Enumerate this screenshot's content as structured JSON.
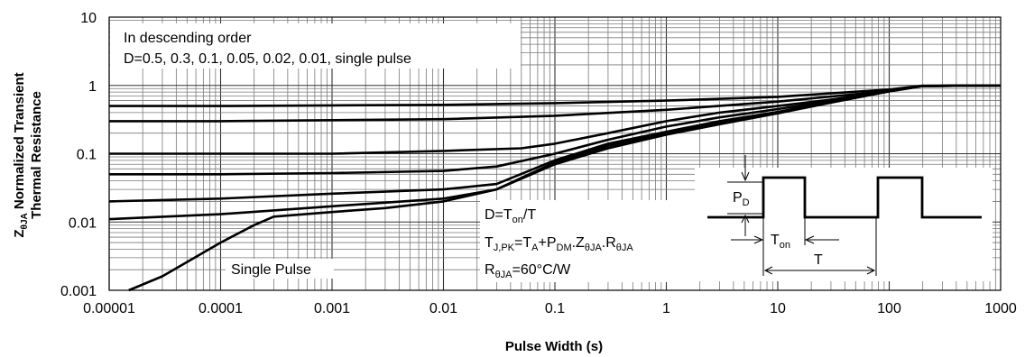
{
  "chart_data": {
    "type": "line",
    "xscale": "log",
    "yscale": "log",
    "xlim": [
      1e-05,
      1000
    ],
    "ylim": [
      0.001,
      10
    ],
    "xlabel": "Pulse Width (s)",
    "ylabel": {
      "line1_prefix": "Z",
      "line1_sub": "θJA",
      "line1_rest": " Normalized Transient",
      "line2": "Thermal Resistance"
    },
    "x_ticks": [
      {
        "v": 1e-05,
        "label": "0.00001"
      },
      {
        "v": 0.0001,
        "label": "0.0001"
      },
      {
        "v": 0.001,
        "label": "0.001"
      },
      {
        "v": 0.01,
        "label": "0.01"
      },
      {
        "v": 0.1,
        "label": "0.1"
      },
      {
        "v": 1,
        "label": "1"
      },
      {
        "v": 10,
        "label": "10"
      },
      {
        "v": 100,
        "label": "100"
      },
      {
        "v": 1000,
        "label": "1000"
      }
    ],
    "y_ticks": [
      {
        "v": 0.001,
        "label": "0.001"
      },
      {
        "v": 0.01,
        "label": "0.01"
      },
      {
        "v": 0.1,
        "label": "0.1"
      },
      {
        "v": 1,
        "label": "1"
      },
      {
        "v": 10,
        "label": "10"
      }
    ],
    "grid": true,
    "series": [
      {
        "x": [
          1e-05,
          0.0001,
          0.001,
          0.01,
          0.1,
          1,
          10,
          100,
          200,
          1000
        ],
        "y": [
          0.5,
          0.5,
          0.51,
          0.52,
          0.55,
          0.6,
          0.68,
          0.87,
          0.99,
          1.0
        ]
      },
      {
        "x": [
          1e-05,
          0.0001,
          0.001,
          0.01,
          0.1,
          1,
          10,
          100,
          200,
          1000
        ],
        "y": [
          0.3,
          0.3,
          0.31,
          0.32,
          0.36,
          0.44,
          0.58,
          0.83,
          0.98,
          1.0
        ]
      },
      {
        "x": [
          1e-05,
          0.0001,
          0.001,
          0.01,
          0.05,
          0.1,
          0.3,
          1,
          3,
          10,
          30,
          100,
          200,
          1000
        ],
        "y": [
          0.1,
          0.1,
          0.1,
          0.11,
          0.12,
          0.14,
          0.2,
          0.3,
          0.4,
          0.5,
          0.62,
          0.83,
          0.98,
          1.0
        ]
      },
      {
        "x": [
          1e-05,
          0.0001,
          0.001,
          0.01,
          0.03,
          0.1,
          0.3,
          1,
          3,
          10,
          30,
          100,
          200,
          1000
        ],
        "y": [
          0.05,
          0.05,
          0.052,
          0.056,
          0.065,
          0.1,
          0.16,
          0.25,
          0.34,
          0.45,
          0.6,
          0.83,
          0.98,
          1.0
        ]
      },
      {
        "x": [
          1e-05,
          0.0001,
          0.001,
          0.01,
          0.03,
          0.1,
          0.3,
          1,
          3,
          10,
          30,
          100,
          200,
          1000
        ],
        "y": [
          0.02,
          0.022,
          0.026,
          0.03,
          0.036,
          0.08,
          0.14,
          0.21,
          0.3,
          0.41,
          0.58,
          0.82,
          0.98,
          1.0
        ]
      },
      {
        "x": [
          1e-05,
          0.0001,
          0.001,
          0.01,
          0.03,
          0.1,
          0.3,
          1,
          3,
          10,
          30,
          100,
          200,
          1000
        ],
        "y": [
          0.011,
          0.013,
          0.017,
          0.022,
          0.03,
          0.075,
          0.13,
          0.2,
          0.28,
          0.4,
          0.57,
          0.82,
          0.98,
          1.0
        ]
      },
      {
        "x": [
          1.5e-05,
          3e-05,
          0.0001,
          0.0002,
          0.0003,
          0.001,
          0.003,
          0.01,
          0.03,
          0.1,
          0.3,
          1,
          3,
          10,
          30,
          100,
          200,
          1000
        ],
        "y": [
          0.001,
          0.0016,
          0.005,
          0.009,
          0.012,
          0.014,
          0.016,
          0.02,
          0.03,
          0.07,
          0.12,
          0.19,
          0.27,
          0.39,
          0.56,
          0.82,
          0.98,
          1.0
        ]
      }
    ],
    "annotations": {
      "legend_line1": "In descending order",
      "legend_line2": "D=0.5, 0.3, 0.1, 0.05, 0.02, 0.01, single pulse",
      "single_pulse": "Single Pulse",
      "formula_d": {
        "a": "D=T",
        "sub": "on",
        "b": "/T"
      },
      "formula_tj": [
        {
          "t": "T",
          "sub": false
        },
        {
          "t": "J,PK",
          "sub": true
        },
        {
          "t": "=T",
          "sub": false
        },
        {
          "t": "A",
          "sub": true
        },
        {
          "t": "+P",
          "sub": false
        },
        {
          "t": "DM",
          "sub": true
        },
        {
          "t": ".Z",
          "sub": false
        },
        {
          "t": "θJA",
          "sub": true
        },
        {
          "t": ".R",
          "sub": false
        },
        {
          "t": "θJA",
          "sub": true
        }
      ],
      "formula_r": {
        "a": "R",
        "sub": "θJA",
        "b": "=60°C/W"
      },
      "pd_label": {
        "a": "P",
        "sub": "D"
      },
      "ton_label": {
        "a": "T",
        "sub": "on"
      },
      "t_label": "T"
    }
  }
}
